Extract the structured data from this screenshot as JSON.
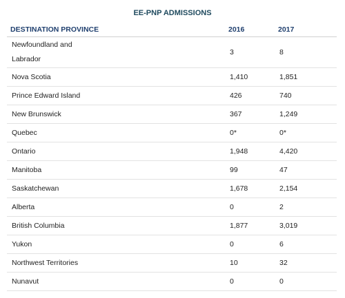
{
  "title": "EE-PNP ADMISSIONS",
  "table": {
    "header": [
      "DESTINATION PROVINCE",
      "2016",
      "2017"
    ],
    "rows": [
      [
        "Newfoundland and Labrador",
        "3",
        "8"
      ],
      [
        "Nova Scotia",
        "1,410",
        "1,851"
      ],
      [
        "Prince Edward Island",
        "426",
        "740"
      ],
      [
        "New Brunswick",
        "367",
        "1,249"
      ],
      [
        "Quebec",
        "0*",
        "0*"
      ],
      [
        "Ontario",
        "1,948",
        "4,420"
      ],
      [
        "Manitoba",
        "99",
        "47"
      ],
      [
        "Saskatchewan",
        "1,678",
        "2,154"
      ],
      [
        "Alberta",
        "0",
        "2"
      ],
      [
        "British Columbia",
        "1,877",
        "3,019"
      ],
      [
        "Yukon",
        "0",
        "6"
      ],
      [
        "Northwest Territories",
        "10",
        "32"
      ],
      [
        "Nunavut",
        "0",
        "0"
      ]
    ]
  }
}
